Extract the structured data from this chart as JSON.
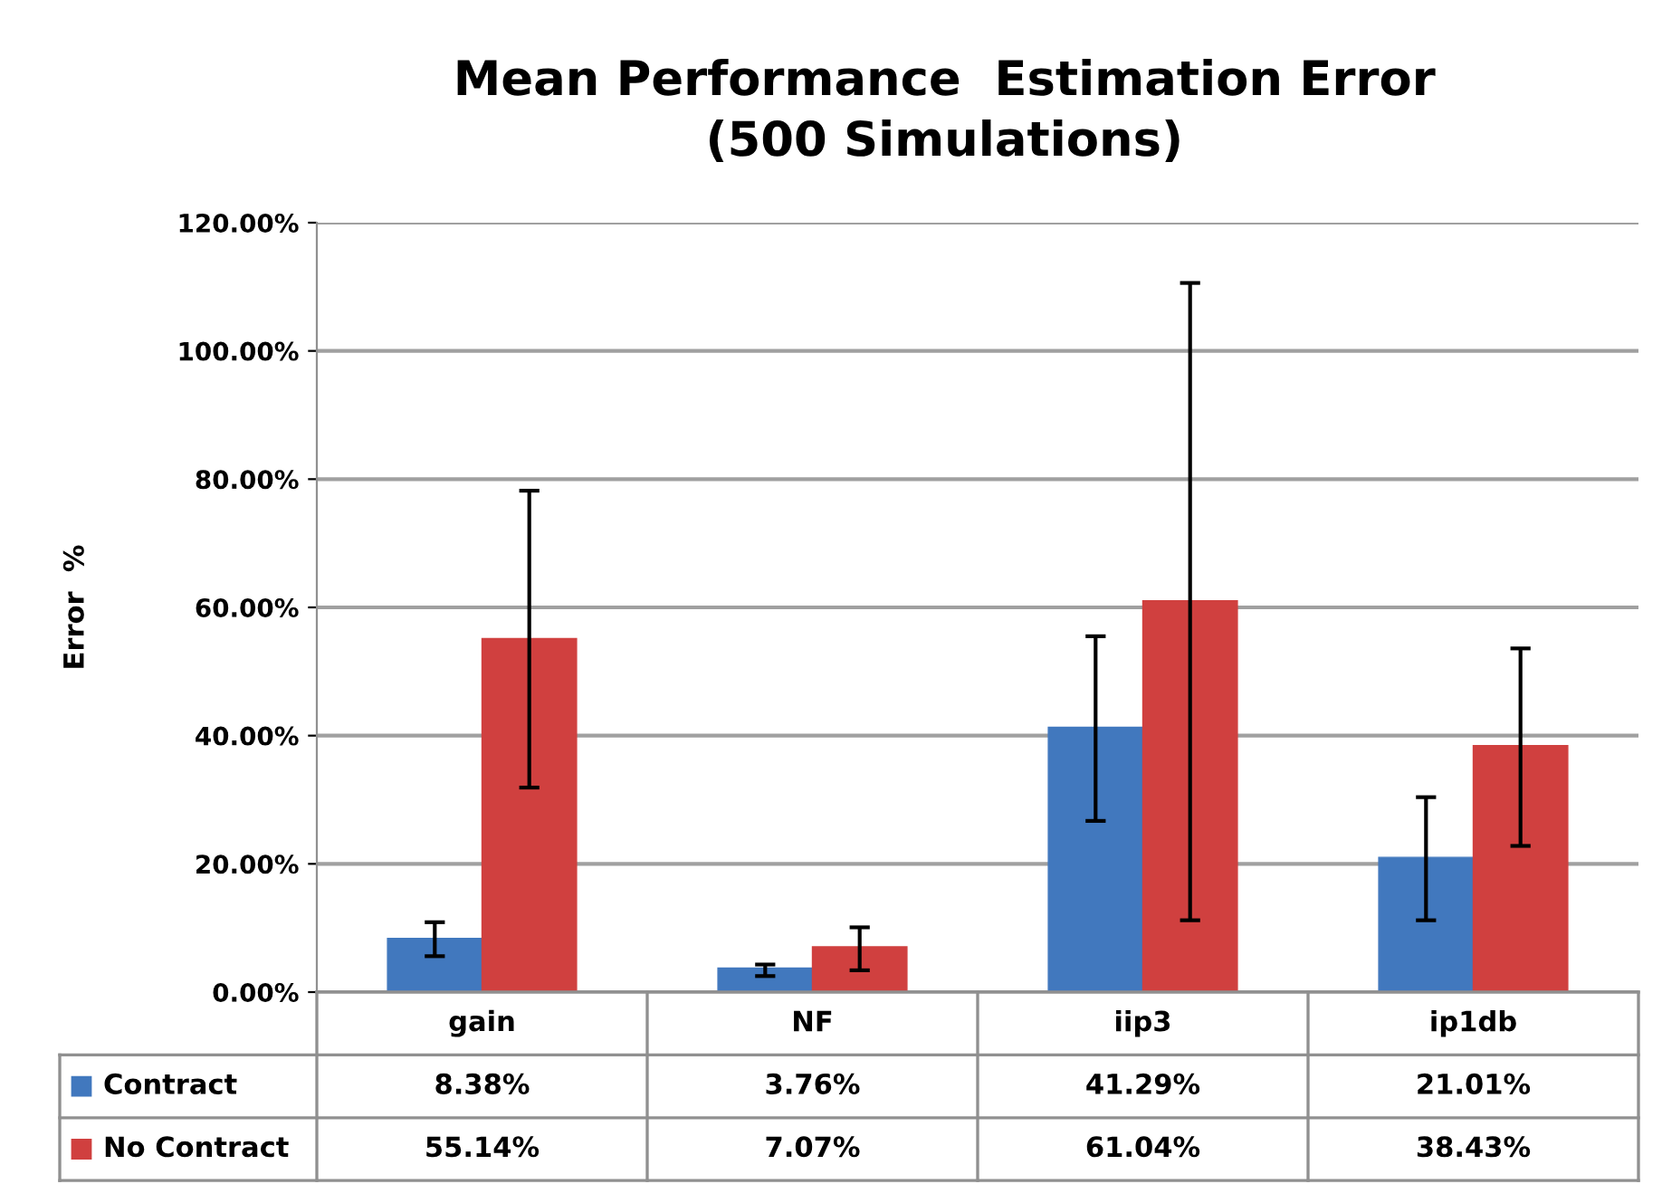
{
  "chart_data": {
    "type": "bar",
    "title": "Mean Performance  Estimation Error\n(500 Simulations)",
    "ylabel": "Error  %",
    "categories": [
      "gain",
      "NF",
      "iip3",
      "ip1db"
    ],
    "series": [
      {
        "name": "Contract",
        "color": "#4178be",
        "values": [
          8.38,
          3.76,
          41.29,
          21.01
        ],
        "value_labels": [
          "8.38%",
          "3.76%",
          "41.29%",
          "21.01%"
        ],
        "errors": [
          [
            5.6,
            10.9
          ],
          [
            2.5,
            4.3
          ],
          [
            26.7,
            55.5
          ],
          [
            11.2,
            30.4
          ]
        ]
      },
      {
        "name": "No Contract",
        "color": "#d0403f",
        "values": [
          55.14,
          7.07,
          61.04,
          38.43
        ],
        "value_labels": [
          "55.14%",
          "7.07%",
          "61.04%",
          "38.43%"
        ],
        "errors": [
          [
            31.9,
            78.2
          ],
          [
            3.4,
            10.1
          ],
          [
            11.2,
            110.6
          ],
          [
            22.8,
            53.6
          ]
        ]
      }
    ],
    "ylim": [
      0,
      120
    ],
    "yticks": [
      {
        "value": 0,
        "label": "0.00%"
      },
      {
        "value": 20,
        "label": "20.00%"
      },
      {
        "value": 40,
        "label": "40.00%"
      },
      {
        "value": 60,
        "label": "60.00%"
      },
      {
        "value": 80,
        "label": "80.00%"
      },
      {
        "value": 100,
        "label": "100.00%"
      },
      {
        "value": 120,
        "label": "120.00%"
      }
    ],
    "grid": "y",
    "legend": "bottom"
  }
}
